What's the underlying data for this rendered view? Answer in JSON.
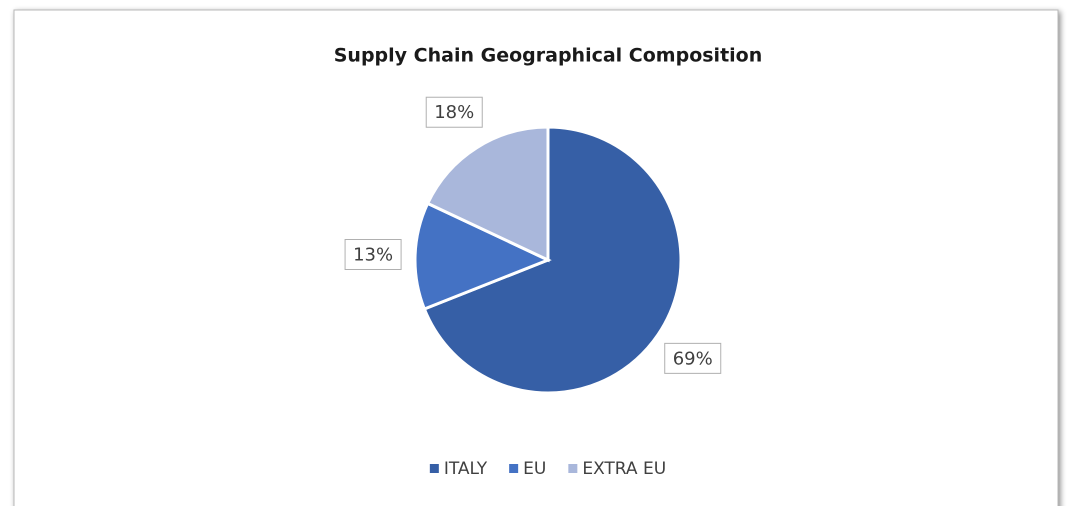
{
  "chart_data": {
    "type": "pie",
    "title": "Supply Chain Geographical Composition",
    "categories": [
      "ITALY",
      "EU",
      "EXTRA EU"
    ],
    "values": [
      69,
      13,
      18
    ],
    "value_labels": [
      "69%",
      "13%",
      "18%"
    ],
    "colors": [
      "#365fa6",
      "#4472c4",
      "#a9b7db"
    ],
    "legend": "bottom"
  }
}
